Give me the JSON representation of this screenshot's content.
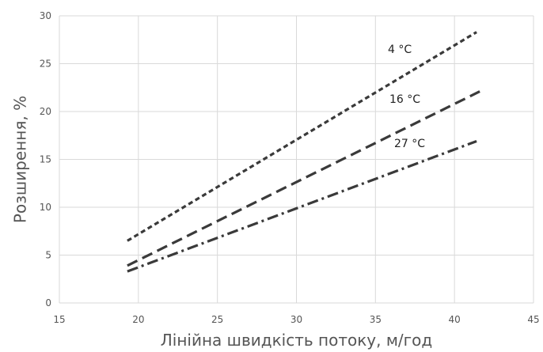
{
  "chart_data": {
    "type": "line",
    "title": "",
    "xlabel": "Лінійна швидкість потоку, м/год",
    "ylabel": "Розширення, %",
    "xlim": [
      15,
      45
    ],
    "ylim": [
      0,
      30
    ],
    "xticks": [
      15,
      20,
      25,
      30,
      35,
      40,
      45
    ],
    "yticks": [
      0,
      5,
      10,
      15,
      20,
      25,
      30
    ],
    "grid": true,
    "legend": "none",
    "series": [
      {
        "label": "4 °C",
        "x": [
          19.3,
          41.4
        ],
        "y": [
          6.5,
          28.3
        ],
        "color": "#3a3a3a",
        "dash": "6 4"
      },
      {
        "label": "16 °C",
        "x": [
          19.3,
          41.6
        ],
        "y": [
          3.9,
          22.1
        ],
        "color": "#3a3a3a",
        "dash": "14 7"
      },
      {
        "label": "27 °C",
        "x": [
          19.3,
          41.4
        ],
        "y": [
          3.3,
          16.9
        ],
        "color": "#3a3a3a",
        "dash": "14 5 3 5"
      }
    ]
  }
}
